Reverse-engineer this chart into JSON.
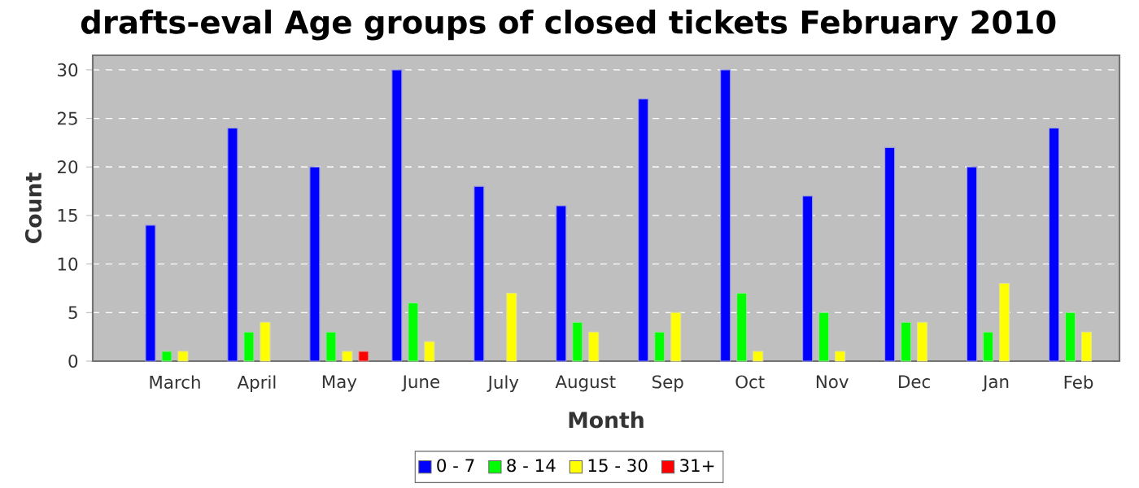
{
  "chart_data": {
    "type": "bar",
    "title": "drafts-eval Age groups of closed tickets February 2010",
    "xlabel": "Month",
    "ylabel": "Count",
    "categories": [
      "March",
      "April",
      "May",
      "June",
      "July",
      "August",
      "Sep",
      "Oct",
      "Nov",
      "Dec",
      "Jan",
      "Feb"
    ],
    "series": [
      {
        "name": "0 - 7",
        "color": "#0000ff",
        "values": [
          14,
          24,
          20,
          30,
          18,
          16,
          27,
          30,
          17,
          22,
          20,
          24
        ]
      },
      {
        "name": "8 - 14",
        "color": "#00ff00",
        "values": [
          1,
          3,
          3,
          6,
          null,
          4,
          3,
          7,
          5,
          4,
          3,
          5
        ]
      },
      {
        "name": "15 - 30",
        "color": "#ffff00",
        "values": [
          1,
          4,
          1,
          2,
          7,
          3,
          5,
          1,
          1,
          4,
          8,
          3
        ]
      },
      {
        "name": "31+",
        "color": "#ff0000",
        "values": [
          null,
          null,
          1,
          null,
          null,
          null,
          null,
          null,
          null,
          null,
          null,
          null
        ]
      }
    ],
    "ylim": [
      0,
      31.5
    ],
    "yticks": [
      0,
      5,
      10,
      15,
      20,
      25,
      30
    ],
    "grid": "y",
    "legend": "bottom"
  }
}
